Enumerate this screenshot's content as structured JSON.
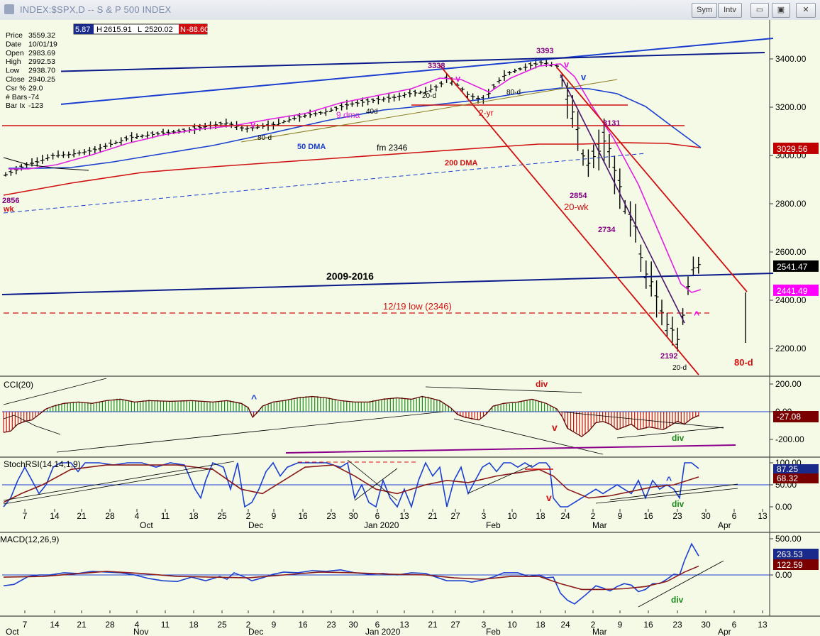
{
  "window": {
    "title": "INDEX:$SPX,D -- S & P 500 INDEX",
    "buttons": [
      "Sym",
      "Intv"
    ],
    "controls": {
      "minimize": "▭",
      "restore": "▣",
      "close": "✕"
    }
  },
  "data_window": {
    "rows": [
      {
        "label": "Price",
        "value": "3559.32"
      },
      {
        "label": "Date",
        "value": "10/01/19"
      },
      {
        "label": "Open",
        "value": "2983.69"
      },
      {
        "label": "High",
        "value": "2992.53"
      },
      {
        "label": "Low",
        "value": "2938.70"
      },
      {
        "label": "Close",
        "value": "2940.25"
      },
      {
        "label": "Csr %",
        "value": "29.0"
      },
      {
        "label": "# Bars",
        "value": "-74"
      },
      {
        "label": "Bar Ix",
        "value": "-123"
      }
    ]
  },
  "quote_bar": {
    "o": "5.87",
    "h_label": "H",
    "h": "2615.91",
    "l_label": "L",
    "l": "2520.02",
    "n_label": "N",
    "n": "-88.60"
  },
  "chart_data": [
    {
      "type": "bar",
      "panel": "price",
      "ylim": [
        2080,
        3520
      ],
      "yticks": [
        "3400.00",
        "3200.00",
        "3000.00",
        "2800.00",
        "2600.00",
        "2400.00",
        "2200.00"
      ],
      "price_labels": [
        {
          "text": "3029.56",
          "value": 3029.56,
          "color": "#c00000"
        },
        {
          "text": "2541.47",
          "value": 2541.47,
          "color": "#000000"
        },
        {
          "text": "2441.49",
          "value": 2441.49,
          "color": "#ff00ff"
        }
      ],
      "series": [
        {
          "name": "9 dma",
          "color": "#e020e0"
        },
        {
          "name": "50 DMA",
          "color": "#1a3fd0"
        },
        {
          "name": "200 DMA",
          "color": "#d01010"
        }
      ],
      "annotations": [
        {
          "text": "3338",
          "color": "#800080"
        },
        {
          "text": "3393",
          "color": "#800080"
        },
        {
          "text": "3131",
          "color": "#800080"
        },
        {
          "text": "2854",
          "color": "#800080"
        },
        {
          "text": "2734",
          "color": "#800080"
        },
        {
          "text": "2192",
          "color": "#800080"
        },
        {
          "text": "2856",
          "color": "#800080"
        },
        {
          "text": "wk",
          "color": "#d01010"
        },
        {
          "text": "20-wk",
          "color": "#d01010"
        },
        {
          "text": "2-yr",
          "color": "#d01010"
        },
        {
          "text": "20-d",
          "color": "#000000"
        },
        {
          "text": "20-d",
          "color": "#000000"
        },
        {
          "text": "80-d",
          "color": "#000000"
        },
        {
          "text": "80-d",
          "color": "#000000"
        },
        {
          "text": "40d",
          "color": "#000000"
        },
        {
          "text": "80-d",
          "color": "#d01010"
        },
        {
          "text": "9 dma",
          "color": "#e020e0"
        },
        {
          "text": "50 DMA",
          "color": "#1a3fd0"
        },
        {
          "text": "200 DMA",
          "color": "#d01010"
        },
        {
          "text": "fm 2346",
          "color": "#000000"
        },
        {
          "text": "2009-2016",
          "color": "#000000"
        },
        {
          "text": "12/19 low (2346)",
          "color": "#d01010"
        },
        {
          "text": "v",
          "color": "#e020e0"
        },
        {
          "text": "v",
          "color": "#e020e0"
        },
        {
          "text": "v",
          "color": "#e020e0"
        },
        {
          "text": "v",
          "color": "#1a3fd0"
        },
        {
          "text": "^",
          "color": "#ff00ff"
        }
      ]
    },
    {
      "type": "bar",
      "panel": "CCI(20)",
      "title": "CCI(20)",
      "yticks": [
        "200.00",
        "0.00",
        "-200.00"
      ],
      "current_label": "-27.08",
      "annotations": [
        {
          "text": "div",
          "color": "#d01010"
        },
        {
          "text": "v",
          "color": "#d01010"
        },
        {
          "text": "div",
          "color": "#1a8a1a"
        },
        {
          "text": "^",
          "color": "#1a3fd0"
        }
      ]
    },
    {
      "type": "line",
      "panel": "StochRSI",
      "title": "StochRSI(14,14,1,9)",
      "yticks": [
        "100.00",
        "50.00",
        "0.00"
      ],
      "labels": [
        "87.25",
        "68.32"
      ],
      "annotations": [
        {
          "text": "v",
          "color": "#d01010"
        },
        {
          "text": "^",
          "color": "#1a3fd0"
        },
        {
          "text": "div",
          "color": "#1a8a1a"
        }
      ]
    },
    {
      "type": "line",
      "panel": "MACD",
      "title": "MACD(12,26,9)",
      "yticks": [
        "500.00",
        "0.00"
      ],
      "labels": [
        "263.53",
        "122.59"
      ],
      "annotations": [
        {
          "text": "div",
          "color": "#1a8a1a"
        }
      ]
    }
  ],
  "time_axis": {
    "days": [
      "7",
      "14",
      "21",
      "28",
      "4",
      "11",
      "18",
      "25",
      "2",
      "9",
      "16",
      "23",
      "30",
      "6",
      "13",
      "21",
      "27",
      "3",
      "10",
      "18",
      "24",
      "2",
      "9",
      "16",
      "23",
      "30",
      "6",
      "13"
    ],
    "months": [
      "Oct",
      "Nov",
      "Dec",
      "Jan 2020",
      "Feb",
      "Mar",
      "Apr"
    ]
  }
}
